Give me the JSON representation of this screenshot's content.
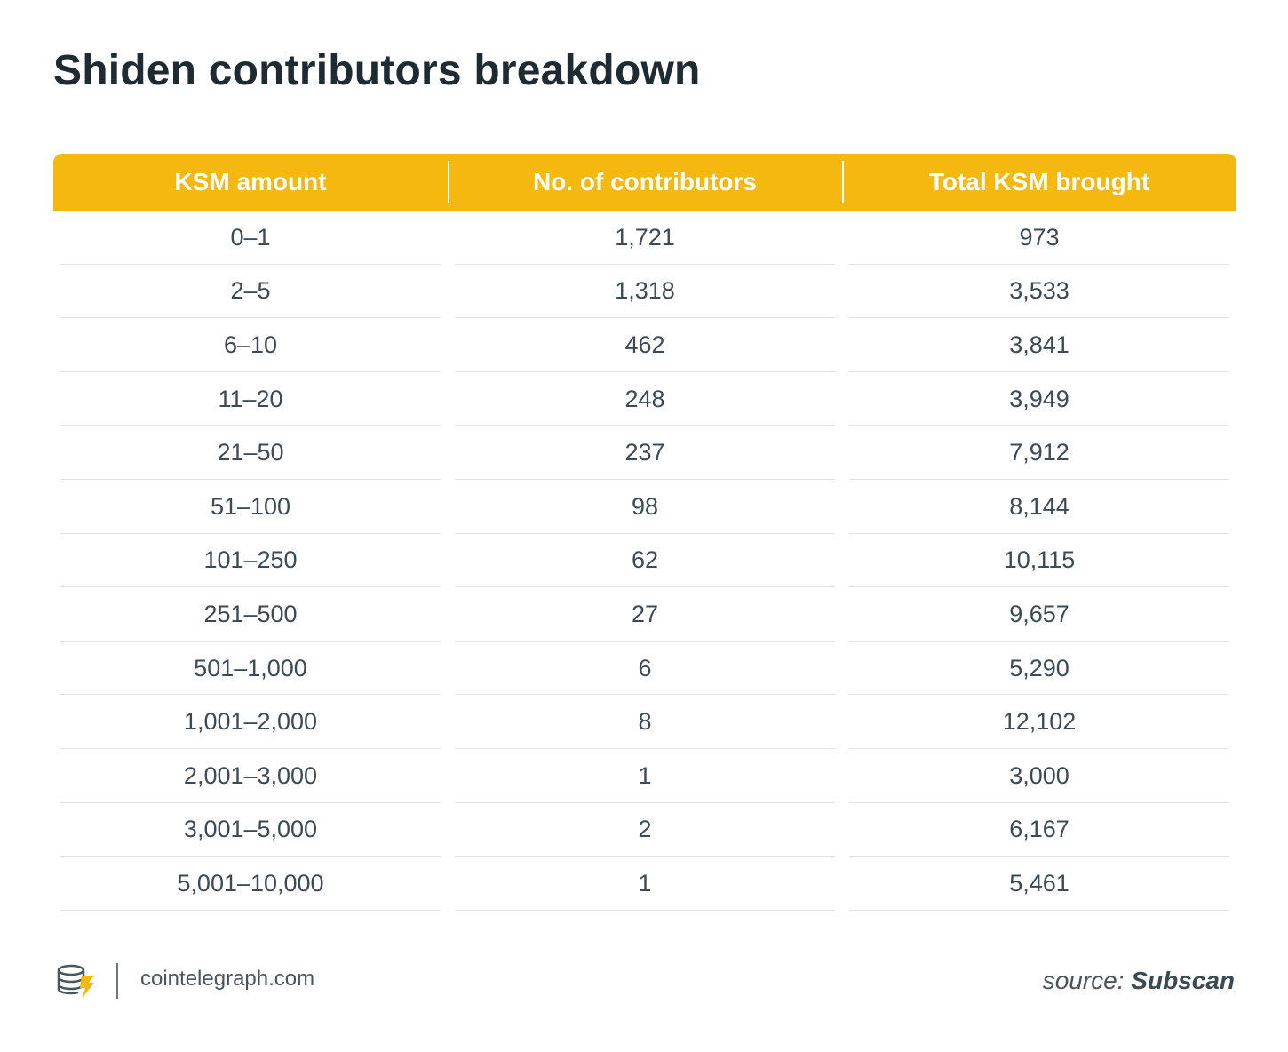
{
  "title": "Shiden contributors breakdown",
  "chart_data": {
    "type": "table",
    "title": "Shiden contributors breakdown",
    "columns": [
      "KSM amount",
      "No. of contributors",
      "Total KSM brought"
    ],
    "rows": [
      [
        "0–1",
        "1,721",
        "973"
      ],
      [
        "2–5",
        "1,318",
        "3,533"
      ],
      [
        "6–10",
        "462",
        "3,841"
      ],
      [
        "11–20",
        "248",
        "3,949"
      ],
      [
        "21–50",
        "237",
        "7,912"
      ],
      [
        "51–100",
        "98",
        "8,144"
      ],
      [
        "101–250",
        "62",
        "10,115"
      ],
      [
        "251–500",
        "27",
        "9,657"
      ],
      [
        "501–1,000",
        "6",
        "5,290"
      ],
      [
        "1,001–2,000",
        "8",
        "12,102"
      ],
      [
        "2,001–3,000",
        "1",
        "3,000"
      ],
      [
        "3,001–5,000",
        "2",
        "6,167"
      ],
      [
        "5,001–10,000",
        "1",
        "5,461"
      ]
    ]
  },
  "footer": {
    "site": "cointelegraph.com",
    "source_prefix": "source:",
    "source_name": "Subscan",
    "logo_icon": "cointelegraph-logo-icon"
  },
  "colors": {
    "header_bg": "#f5b80f",
    "header_text": "#ffffff",
    "cell_text": "#3b4a54",
    "row_divider": "#dfe3e6"
  }
}
